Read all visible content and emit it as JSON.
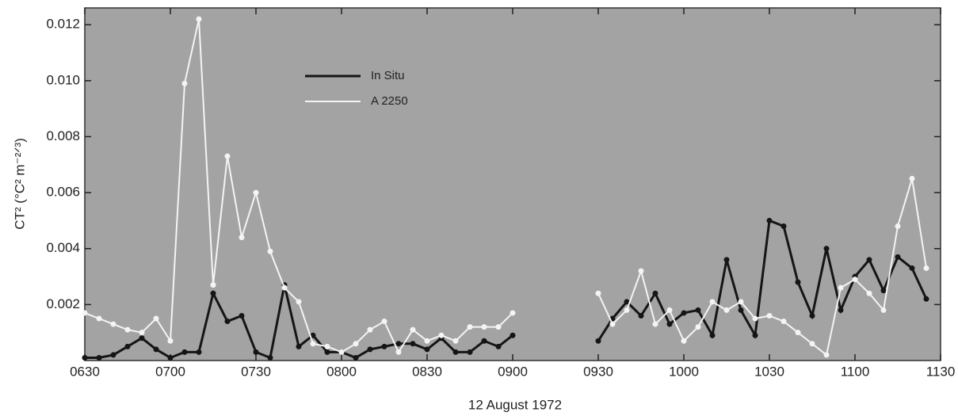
{
  "chart_data": {
    "type": "line",
    "xlabel": "12 August 1972",
    "ylabel": "CT² (°C² m⁻²ᐟ³)",
    "x": [
      390,
      395,
      400,
      405,
      410,
      415,
      420,
      425,
      430,
      435,
      440,
      445,
      450,
      455,
      460,
      465,
      470,
      475,
      480,
      485,
      490,
      495,
      500,
      505,
      510,
      515,
      520,
      525,
      530,
      535,
      540,
      555,
      570,
      575,
      580,
      585,
      590,
      595,
      600,
      605,
      610,
      615,
      620,
      625,
      630,
      635,
      640,
      645,
      650,
      655,
      660,
      665,
      670,
      675,
      680,
      685
    ],
    "xlim": [
      390,
      690
    ],
    "xticks": [
      {
        "value": 390,
        "label": "0630"
      },
      {
        "value": 420,
        "label": "0700"
      },
      {
        "value": 450,
        "label": "0730"
      },
      {
        "value": 480,
        "label": "0800"
      },
      {
        "value": 510,
        "label": "0830"
      },
      {
        "value": 540,
        "label": "0900"
      },
      {
        "value": 570,
        "label": "0930"
      },
      {
        "value": 600,
        "label": "1000"
      },
      {
        "value": 630,
        "label": "1030"
      },
      {
        "value": 660,
        "label": "1100"
      },
      {
        "value": 690,
        "label": "1130"
      }
    ],
    "ylim": [
      0,
      0.0126
    ],
    "yticks": [
      0.002,
      0.004,
      0.006,
      0.008,
      {
        "value": 0.01,
        "label": "0.010"
      },
      0.012
    ],
    "background": "#a3a3a3",
    "series": [
      {
        "name": "In Situ",
        "color": "#151515",
        "values": [
          0.0001,
          0.0001,
          0.0002,
          0.0005,
          0.0008,
          0.0004,
          0.0001,
          0.0003,
          0.0003,
          0.0024,
          0.0014,
          0.0016,
          0.0003,
          0.0001,
          0.0027,
          0.0005,
          0.0009,
          0.0003,
          0.0003,
          0.0001,
          0.0004,
          0.0005,
          0.0006,
          0.0006,
          0.0004,
          0.0008,
          0.0003,
          0.0003,
          0.0007,
          0.0005,
          0.0009,
          null,
          0.0007,
          0.0015,
          0.0021,
          0.0016,
          0.0024,
          0.0013,
          0.0017,
          0.0018,
          0.0009,
          0.0036,
          0.0018,
          0.0009,
          0.005,
          0.0048,
          0.0028,
          0.0016,
          0.004,
          0.0018,
          0.003,
          0.0036,
          0.0025,
          0.0037,
          0.0033,
          0.0022
        ]
      },
      {
        "name": "A 2250",
        "color": "#f4f4f4",
        "values": [
          0.0017,
          0.0015,
          0.0013,
          0.0011,
          0.001,
          0.0015,
          0.0007,
          0.0099,
          0.0122,
          0.0027,
          0.0073,
          0.0044,
          0.006,
          0.0039,
          0.0026,
          0.0021,
          0.0006,
          0.0005,
          0.0003,
          0.0006,
          0.0011,
          0.0014,
          0.0003,
          0.0011,
          0.0007,
          0.0009,
          0.0007,
          0.0012,
          0.0012,
          0.0012,
          0.0017,
          null,
          0.0024,
          0.0013,
          0.0018,
          0.0032,
          0.0013,
          0.0018,
          0.0007,
          0.0012,
          0.0021,
          0.0018,
          0.0021,
          0.0015,
          0.0016,
          0.0014,
          0.001,
          0.0006,
          0.0002,
          0.0026,
          0.0029,
          0.0024,
          0.0018,
          0.0048,
          0.0065,
          0.0033
        ]
      }
    ]
  }
}
